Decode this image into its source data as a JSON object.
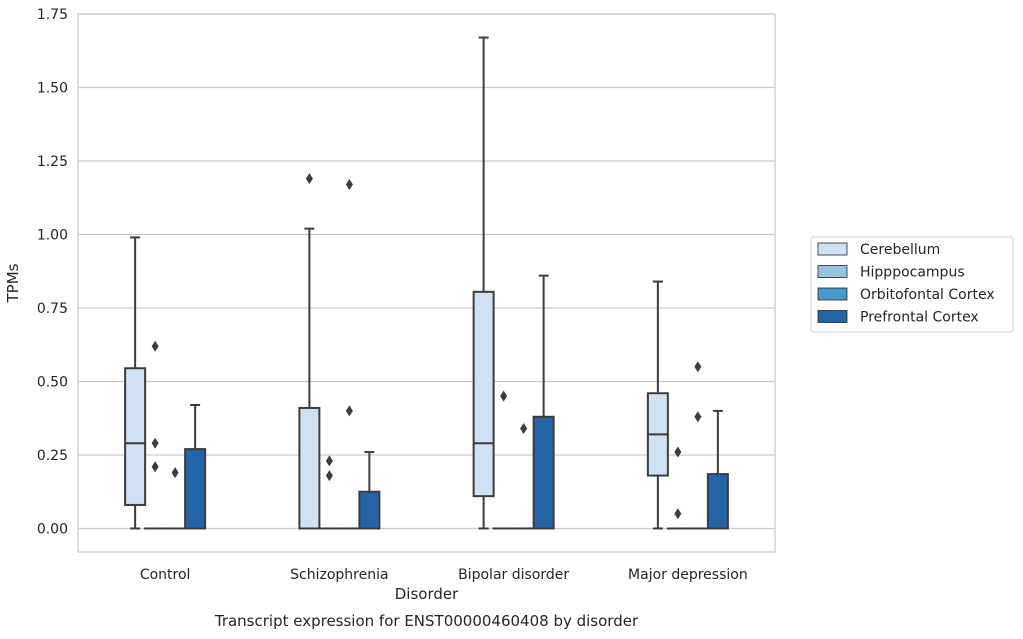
{
  "chart_data": {
    "type": "box",
    "title": "",
    "caption": "Transcript expression for ENST00000460408 by disorder",
    "xlabel": "Disorder",
    "ylabel": "TPMs",
    "ylim": [
      -0.08,
      1.75
    ],
    "yticks": [
      "0.00",
      "0.25",
      "0.50",
      "0.75",
      "1.00",
      "1.25",
      "1.50",
      "1.75"
    ],
    "ytick_values": [
      0,
      0.25,
      0.5,
      0.75,
      1.0,
      1.25,
      1.5,
      1.75
    ],
    "grid": "horizontal",
    "legend_position": "right",
    "categories": [
      "Control",
      "Schizophrenia",
      "Bipolar disorder",
      "Major depression"
    ],
    "series": [
      {
        "name": "Cerebellum",
        "color": "#d0e1f2",
        "boxes": [
          {
            "whislo": 0,
            "q1": 0.08,
            "med": 0.29,
            "q3": 0.545,
            "whishi": 0.99,
            "fliers": []
          },
          {
            "whislo": 0,
            "q1": 0,
            "med": 0,
            "q3": 0.41,
            "whishi": 1.02,
            "fliers": [
              1.19
            ]
          },
          {
            "whislo": 0,
            "q1": 0.11,
            "med": 0.29,
            "q3": 0.805,
            "whishi": 1.67,
            "fliers": []
          },
          {
            "whislo": 0,
            "q1": 0.18,
            "med": 0.32,
            "q3": 0.46,
            "whishi": 0.84,
            "fliers": []
          }
        ]
      },
      {
        "name": "Hipppocampus",
        "color": "#94c4df",
        "boxes": [
          {
            "whislo": 0,
            "q1": 0,
            "med": 0,
            "q3": 0,
            "whishi": 0,
            "fliers": [
              0.62,
              0.29,
              0.21
            ]
          },
          {
            "whislo": 0,
            "q1": 0,
            "med": 0,
            "q3": 0,
            "whishi": 0,
            "fliers": [
              0.23,
              0.18
            ]
          },
          {
            "whislo": 0,
            "q1": 0,
            "med": 0,
            "q3": 0,
            "whishi": 0,
            "fliers": [
              0.45
            ]
          },
          {
            "whislo": 0,
            "q1": 0,
            "med": 0,
            "q3": 0,
            "whishi": 0,
            "fliers": [
              0.26,
              0.05
            ]
          }
        ]
      },
      {
        "name": "Orbitofontal Cortex",
        "color": "#4a98c9",
        "boxes": [
          {
            "whislo": 0,
            "q1": 0,
            "med": 0,
            "q3": 0,
            "whishi": 0,
            "fliers": [
              0.19
            ]
          },
          {
            "whislo": 0,
            "q1": 0,
            "med": 0,
            "q3": 0,
            "whishi": 0,
            "fliers": [
              1.17,
              0.4
            ]
          },
          {
            "whislo": 0,
            "q1": 0,
            "med": 0,
            "q3": 0,
            "whishi": 0,
            "fliers": [
              0.34
            ]
          },
          {
            "whislo": 0,
            "q1": 0,
            "med": 0,
            "q3": 0,
            "whishi": 0,
            "fliers": [
              0.55,
              0.38
            ]
          }
        ]
      },
      {
        "name": "Prefrontal Cortex",
        "color": "#2464a8",
        "boxes": [
          {
            "whislo": 0,
            "q1": 0,
            "med": 0,
            "q3": 0.27,
            "whishi": 0.42,
            "fliers": []
          },
          {
            "whislo": 0,
            "q1": 0,
            "med": 0,
            "q3": 0.125,
            "whishi": 0.26,
            "fliers": []
          },
          {
            "whislo": 0,
            "q1": 0,
            "med": 0,
            "q3": 0.38,
            "whishi": 0.86,
            "fliers": []
          },
          {
            "whislo": 0,
            "q1": 0,
            "med": 0,
            "q3": 0.185,
            "whishi": 0.4,
            "fliers": []
          }
        ]
      }
    ]
  }
}
